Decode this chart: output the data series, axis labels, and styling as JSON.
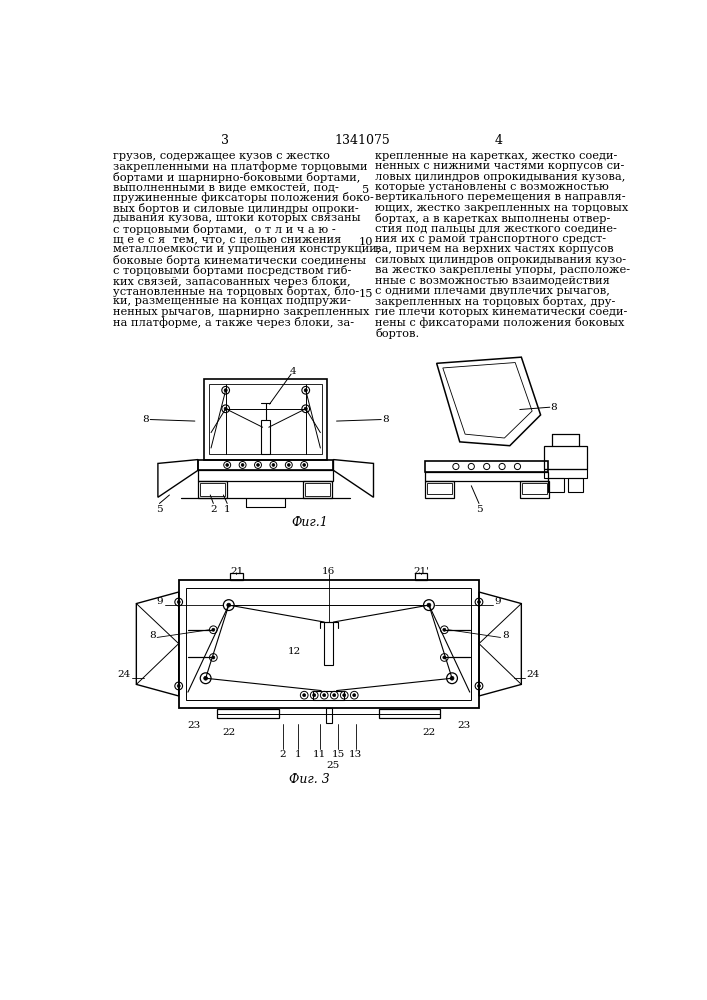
{
  "title": "1341075",
  "page_left": "3",
  "page_right": "4",
  "background_color": "#ffffff",
  "text_color": "#000000",
  "left_column_text": [
    "грузов, содержащее кузов с жестко",
    "закрепленными на платформе торцовыми",
    "бортами и шарнирно-боковыми бортами,",
    "выполненными в виде емкостей, под-",
    "пружиненные фиксаторы положения боко-",
    "вых бортов и силовые цилиндры опроки-",
    "дывания кузова, штоки которых связаны",
    "с торцовыми бортами,  о т л и ч а ю -",
    "щ е е с я  тем, что, с целью снижения",
    "металлоемкости и упрощения конструкции,",
    "боковые борта кинематически соединены",
    "с торцовыми бортами посредством гиб-",
    "ких связей, запасованных через блоки,",
    "установленные на торцовых бортах, бло-",
    "ки, размещенные на концах подпружи-",
    "ненных рычагов, шарнирно закрепленных",
    "на платформе, а также через блоки, за-"
  ],
  "right_column_text": [
    "крепленные на каретках, жестко соеди-",
    "ненных с нижними частями корпусов си-",
    "ловых цилиндров опрокидывания кузова,",
    "которые установлены с возможностью",
    "вертикального перемещения в направля-",
    "ющих, жестко закрепленных на торцовых",
    "бортах, а в каретках выполнены отвер-",
    "стия под пальцы для жесткого соедине-",
    "ния их с рамой транспортного средст-",
    "ва, причем на верхних частях корпусов",
    "силовых цилиндров опрокидывания кузо-",
    "ва жестко закреплены упоры, расположе-",
    "нные с возможностью взаимодействия",
    "с одними плечами двуплечих рычагов,",
    "закрепленных на торцовых бортах, дру-",
    "гие плечи которых кинематически соеди-",
    "нены с фиксаторами положения боковых",
    "бортов."
  ],
  "fig1_label": "Фиг.1",
  "fig3_label": "Фиг. 3"
}
